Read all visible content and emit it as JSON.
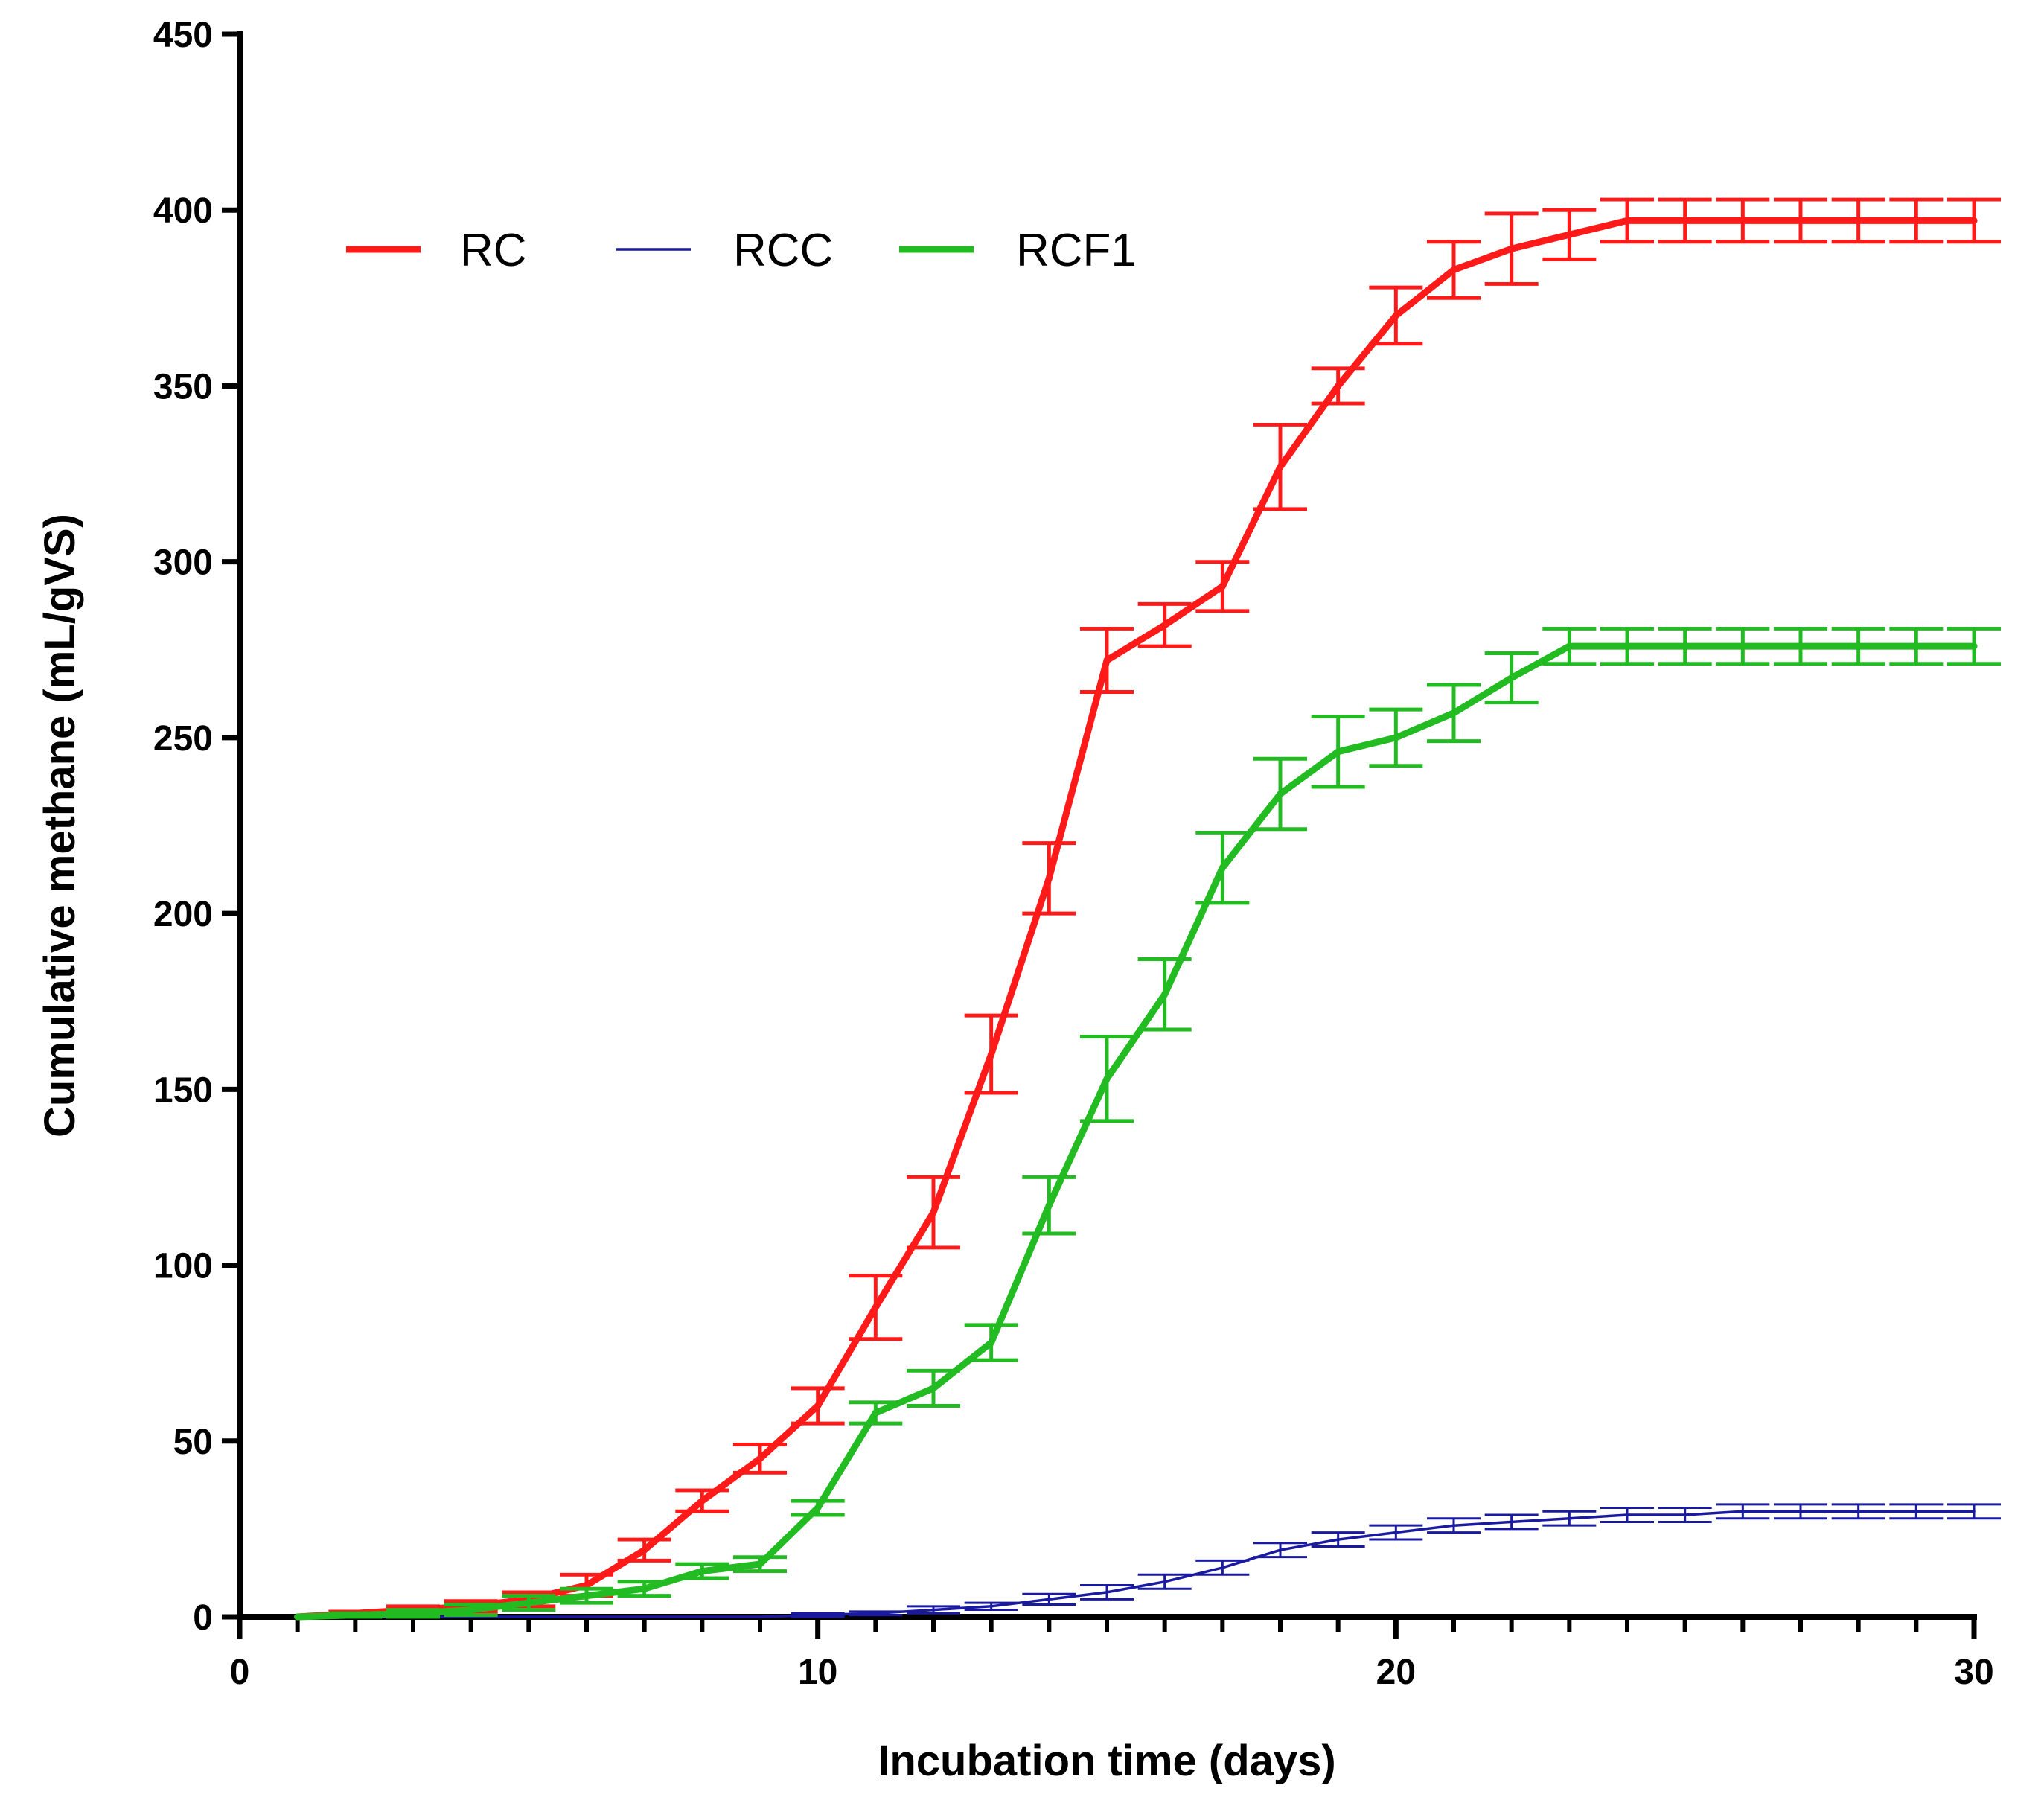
{
  "chart_data": {
    "type": "line",
    "title": "",
    "xlabel": "Incubation time (days)",
    "ylabel": "Cumulative methane (mL/gVS)",
    "xlim": [
      0,
      30
    ],
    "ylim": [
      0,
      450
    ],
    "xticks": [
      0,
      10,
      20,
      30
    ],
    "yticks": [
      0,
      50,
      100,
      150,
      200,
      250,
      300,
      350,
      400,
      450
    ],
    "x_minor_step": 1,
    "grid": false,
    "legend_position": "top-left",
    "series": [
      {
        "name": "RC",
        "color": "#ff1a1a",
        "x": [
          1,
          2,
          3,
          4,
          5,
          6,
          7,
          8,
          9,
          10,
          11,
          12,
          13,
          14,
          15,
          16,
          17,
          18,
          19,
          20,
          21,
          22,
          23,
          24,
          25,
          26,
          27,
          28,
          29,
          30
        ],
        "y": [
          0,
          1,
          2,
          3,
          5,
          9,
          19,
          33,
          45,
          60,
          88,
          115,
          160,
          210,
          272,
          282,
          293,
          327,
          350,
          370,
          383,
          389,
          393,
          397,
          397,
          397,
          397,
          397,
          397,
          397
        ],
        "err": [
          0,
          0.5,
          1,
          1.5,
          2,
          3,
          3,
          3,
          4,
          5,
          9,
          10,
          11,
          10,
          9,
          6,
          7,
          12,
          5,
          8,
          8,
          10,
          7,
          6,
          6,
          6,
          6,
          6,
          6,
          6
        ]
      },
      {
        "name": "RCC",
        "color": "#1a1aa0",
        "x": [
          1,
          2,
          3,
          4,
          5,
          6,
          7,
          8,
          9,
          10,
          11,
          12,
          13,
          14,
          15,
          16,
          17,
          18,
          19,
          20,
          21,
          22,
          23,
          24,
          25,
          26,
          27,
          28,
          29,
          30
        ],
        "y": [
          0,
          0,
          0,
          0,
          0,
          0,
          0,
          0,
          0,
          0.5,
          1,
          2,
          3,
          5,
          7,
          10,
          14,
          19,
          22,
          24,
          26,
          27,
          28,
          29,
          29,
          30,
          30,
          30,
          30,
          30
        ],
        "err": [
          0,
          0,
          0,
          0,
          0,
          0,
          0,
          0,
          0,
          0.5,
          0.5,
          1,
          1,
          1.5,
          2,
          2,
          2,
          2,
          2,
          2,
          2,
          2,
          2,
          2,
          2,
          2,
          2,
          2,
          2,
          2
        ]
      },
      {
        "name": "RCF1",
        "color": "#22bb22",
        "x": [
          1,
          2,
          3,
          4,
          5,
          6,
          7,
          8,
          9,
          10,
          11,
          12,
          13,
          14,
          15,
          16,
          17,
          18,
          19,
          20,
          21,
          22,
          23,
          24,
          25,
          26,
          27,
          28,
          29,
          30
        ],
        "y": [
          0,
          0.5,
          1,
          2,
          4,
          6,
          8,
          13,
          15,
          31,
          58,
          65,
          78,
          117,
          153,
          177,
          213,
          234,
          246,
          250,
          257,
          267,
          276,
          276,
          276,
          276,
          276,
          276,
          276,
          276
        ],
        "err": [
          0,
          0.5,
          1,
          1.5,
          2,
          2,
          2,
          2,
          2,
          2,
          3,
          5,
          5,
          8,
          12,
          10,
          10,
          10,
          10,
          8,
          8,
          7,
          5,
          5,
          5,
          5,
          5,
          5,
          5,
          5
        ]
      }
    ]
  }
}
